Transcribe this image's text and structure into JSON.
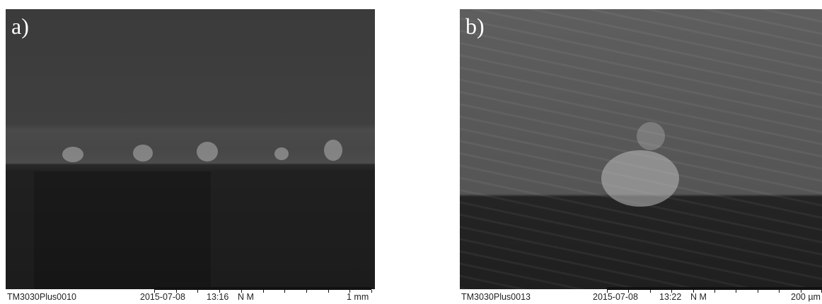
{
  "panels": [
    {
      "label": "a)",
      "footer": {
        "id": "TM3030Plus0010",
        "date": "2015-07-08",
        "time": "13:16",
        "mode": "N M",
        "scale": "1 mm"
      }
    },
    {
      "label": "b)",
      "footer": {
        "id": "TM3030Plus0013",
        "date": "2015-07-08",
        "time": "13:22",
        "mode": "N M",
        "scale": "200 µm"
      }
    }
  ]
}
